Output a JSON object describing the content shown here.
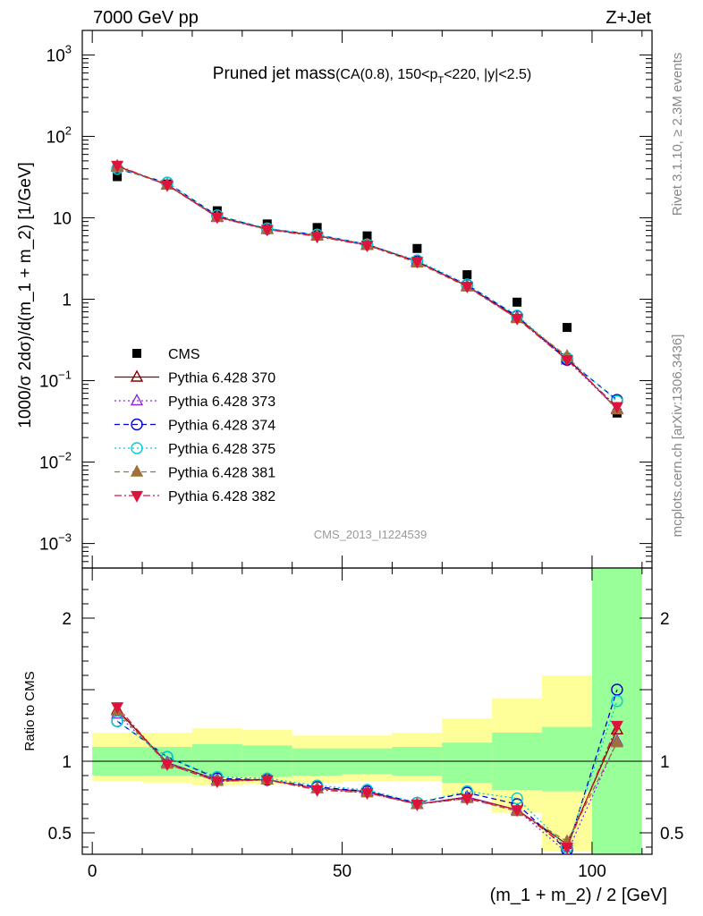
{
  "header": {
    "left": "7000 GeV pp",
    "right": "Z+Jet"
  },
  "side_labels": {
    "right_top": "Rivet 3.1.10, ≥ 2.3M events",
    "right_bottom": "mcplots.cern.ch [arXiv:1306.3436]"
  },
  "watermark": "CMS_2013_I1224539",
  "chart_data": [
    {
      "type": "scatter",
      "panel": "main",
      "title": "Pruned jet mass",
      "subtitle": "(CA(0.8), 150<p_T<220, |y|<2.5)",
      "subtitle_parts": {
        "a": "(CA(0.8), 150<p",
        "sub": "T",
        "b": "<220, |y|<2.5)"
      },
      "ylabel": "1000/σ 2dσ)/d(m_1 + m_2) [1/GeV]",
      "yscale": "log",
      "ylim": [
        0.0005,
        2000
      ],
      "xlim": [
        -2,
        112
      ],
      "ytick_labels": [
        {
          "v": 0.001,
          "base": "10",
          "exp": "−3"
        },
        {
          "v": 0.01,
          "base": "10",
          "exp": "−2"
        },
        {
          "v": 0.1,
          "base": "10",
          "exp": "−1"
        },
        {
          "v": 1,
          "base": "1",
          "exp": ""
        },
        {
          "v": 10,
          "base": "10",
          "exp": ""
        },
        {
          "v": 100,
          "base": "10",
          "exp": "2"
        },
        {
          "v": 1000,
          "base": "10",
          "exp": "3"
        }
      ],
      "legend_position": "middle-left",
      "x": [
        5,
        15,
        25,
        35,
        45,
        55,
        65,
        75,
        85,
        95,
        105
      ],
      "series": [
        {
          "name": "CMS",
          "color": "#000000",
          "marker": "square",
          "line": "none",
          "values": [
            32,
            26,
            12.2,
            8.4,
            7.6,
            6.0,
            4.2,
            2.0,
            0.92,
            0.45,
            0.04
          ]
        },
        {
          "name": "Pythia 6.428 370",
          "color": "#8B0000",
          "marker": "open-triangle-up",
          "line": "solid",
          "values": [
            43,
            25.5,
            10.3,
            7.3,
            6.0,
            4.7,
            2.9,
            1.45,
            0.6,
            0.19,
            0.045
          ]
        },
        {
          "name": "Pythia 6.428 373",
          "color": "#8A2BE2",
          "marker": "open-triangle-up",
          "line": "dotted",
          "values": [
            42,
            25.5,
            10.1,
            7.2,
            6.1,
            4.6,
            2.9,
            1.45,
            0.59,
            0.18,
            0.045
          ]
        },
        {
          "name": "Pythia 6.428 374",
          "color": "#0000CD",
          "marker": "open-circle",
          "line": "dashed",
          "values": [
            40,
            27,
            10.6,
            7.3,
            6.2,
            4.7,
            2.9,
            1.5,
            0.62,
            0.18,
            0.058
          ]
        },
        {
          "name": "Pythia 6.428 375",
          "color": "#00CED1",
          "marker": "open-circle",
          "line": "dotted",
          "values": [
            40,
            27,
            10.7,
            7.4,
            6.2,
            4.7,
            3.0,
            1.52,
            0.63,
            0.19,
            0.056
          ]
        },
        {
          "name": "Pythia 6.428 381",
          "color": "#A0703C",
          "marker": "filled-triangle-up",
          "line": "dashed",
          "values": [
            42,
            25.2,
            10.2,
            7.2,
            6.0,
            4.6,
            2.8,
            1.42,
            0.58,
            0.2,
            0.044
          ]
        },
        {
          "name": "Pythia 6.428 382",
          "color": "#DC143C",
          "marker": "filled-triangle-down",
          "line": "dashdot",
          "values": [
            44,
            25.2,
            10.2,
            7.2,
            5.9,
            4.6,
            2.9,
            1.44,
            0.58,
            0.18,
            0.048
          ]
        }
      ]
    },
    {
      "type": "scatter",
      "panel": "ratio",
      "ylabel": "Ratio to CMS",
      "xlabel": "(m_1 + m_2) / 2 [GeV]",
      "ylim": [
        0.35,
        2.35
      ],
      "xlim": [
        -2,
        112
      ],
      "yticks": [
        0.5,
        1,
        2
      ],
      "ytick_text": [
        "0.5",
        "1",
        "2"
      ],
      "xticks": [
        0,
        50,
        100
      ],
      "xtick_text": [
        "0",
        "50",
        "100"
      ],
      "bands": {
        "x_edges": [
          0,
          10,
          20,
          30,
          40,
          50,
          60,
          70,
          80,
          90,
          100,
          110
        ],
        "inner": [
          [
            0.9,
            1.1
          ],
          [
            0.9,
            1.1
          ],
          [
            0.89,
            1.12
          ],
          [
            0.89,
            1.11
          ],
          [
            0.9,
            1.09
          ],
          [
            0.91,
            1.09
          ],
          [
            0.9,
            1.1
          ],
          [
            0.85,
            1.13
          ],
          [
            0.8,
            1.2
          ],
          [
            0.79,
            1.24
          ],
          [
            0.2,
            3.0
          ]
        ],
        "outer": [
          [
            0.86,
            1.2
          ],
          [
            0.85,
            1.2
          ],
          [
            0.83,
            1.23
          ],
          [
            0.84,
            1.22
          ],
          [
            0.85,
            1.18
          ],
          [
            0.86,
            1.18
          ],
          [
            0.86,
            1.2
          ],
          [
            0.76,
            1.3
          ],
          [
            0.64,
            1.44
          ],
          [
            0.37,
            1.6
          ],
          [
            0.2,
            3.0
          ]
        ],
        "inner_color": "#99ff99",
        "outer_color": "#ffff99"
      },
      "x": [
        5,
        15,
        25,
        35,
        45,
        55,
        65,
        75,
        85,
        95,
        105
      ],
      "series": [
        {
          "name": "Pythia 6.428 370",
          "color": "#8B0000",
          "marker": "open-triangle-up",
          "line": "solid",
          "values": [
            1.36,
            0.99,
            0.87,
            0.87,
            0.81,
            0.79,
            0.7,
            0.75,
            0.66,
            0.42,
            1.22
          ]
        },
        {
          "name": "Pythia 6.428 373",
          "color": "#8A2BE2",
          "marker": "open-triangle-up",
          "line": "dotted",
          "values": [
            1.33,
            0.99,
            0.87,
            0.87,
            0.81,
            0.79,
            0.7,
            0.75,
            0.66,
            0.36,
            1.14
          ]
        },
        {
          "name": "Pythia 6.428 374",
          "color": "#0000CD",
          "marker": "open-circle",
          "line": "dashed",
          "values": [
            1.28,
            1.03,
            0.88,
            0.87,
            0.82,
            0.79,
            0.71,
            0.78,
            0.7,
            0.38,
            1.5
          ]
        },
        {
          "name": "Pythia 6.428 375",
          "color": "#00CED1",
          "marker": "open-circle",
          "line": "dotted",
          "values": [
            1.28,
            1.03,
            0.89,
            0.88,
            0.83,
            0.8,
            0.71,
            0.79,
            0.74,
            0.4,
            1.42
          ]
        },
        {
          "name": "Pythia 6.428 381",
          "color": "#A0703C",
          "marker": "filled-triangle-up",
          "line": "dashed",
          "values": [
            1.35,
            0.98,
            0.86,
            0.87,
            0.81,
            0.78,
            0.7,
            0.74,
            0.65,
            0.44,
            1.13
          ]
        },
        {
          "name": "Pythia 6.428 382",
          "color": "#DC143C",
          "marker": "filled-triangle-down",
          "line": "dashdot",
          "values": [
            1.38,
            0.98,
            0.86,
            0.87,
            0.8,
            0.78,
            0.7,
            0.74,
            0.66,
            0.4,
            1.25
          ]
        }
      ]
    }
  ]
}
